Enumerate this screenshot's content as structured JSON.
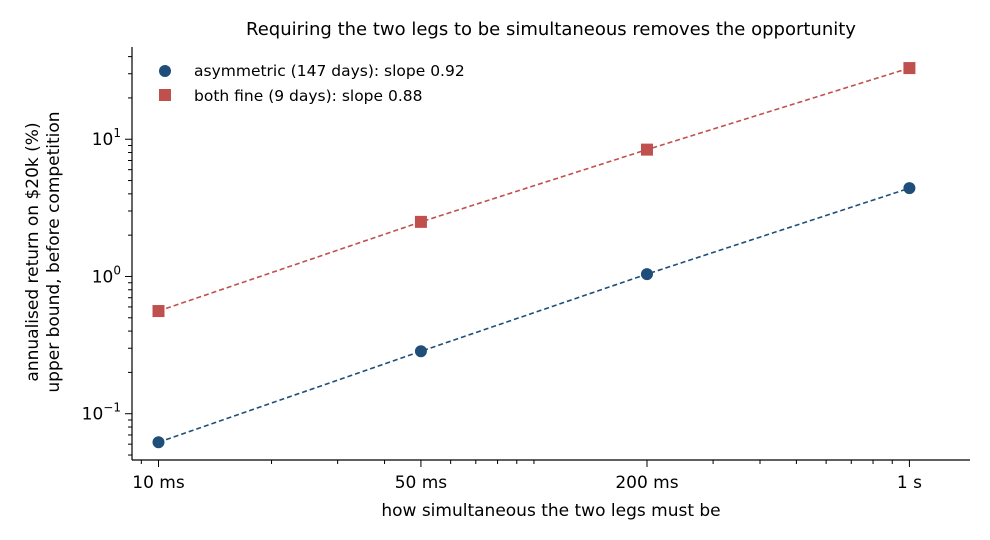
{
  "chart_data": {
    "type": "scatter",
    "title": "Requiring the two legs to be simultaneous removes the opportunity",
    "xlabel": "how simultaneous the two legs must be",
    "ylabel": [
      "annualised return on $20k (%)",
      "upper bound, before competition"
    ],
    "x_scale": "log",
    "y_scale": "log",
    "x_ticks": [
      {
        "value": 0.01,
        "label": "10 ms"
      },
      {
        "value": 0.05,
        "label": "50 ms"
      },
      {
        "value": 0.2,
        "label": "200 ms"
      },
      {
        "value": 1,
        "label": "1 s"
      }
    ],
    "y_ticks": [
      {
        "value": 0.1,
        "base": "10",
        "exp": "−1"
      },
      {
        "value": 1,
        "base": "10",
        "exp": "0"
      },
      {
        "value": 10,
        "base": "10",
        "exp": "1"
      }
    ],
    "xlim": [
      0.0085,
      1.45
    ],
    "ylim": [
      0.046,
      47
    ],
    "legend_position": "top-left",
    "grid": false,
    "series": [
      {
        "name": "asymmetric (147 days): slope 0.92",
        "marker": "circle",
        "color": "#1f4e79",
        "x": [
          0.01,
          0.05,
          0.2,
          1
        ],
        "y": [
          0.062,
          0.285,
          1.04,
          4.4
        ]
      },
      {
        "name": "both fine (9 days): slope 0.88",
        "marker": "square",
        "color": "#c0504d",
        "x": [
          0.01,
          0.05,
          0.2,
          1
        ],
        "y": [
          0.56,
          2.5,
          8.4,
          33
        ]
      }
    ]
  }
}
